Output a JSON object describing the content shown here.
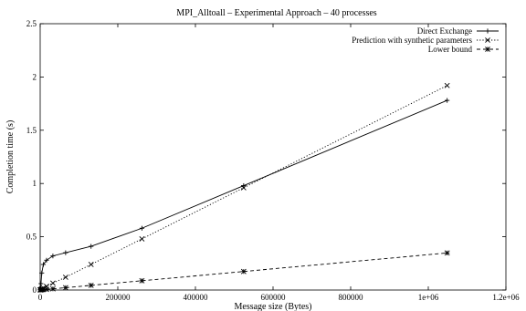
{
  "chart_data": {
    "type": "line",
    "title": "MPI_Alltoall – Experimental Approach – 40 processes",
    "xlabel": "Message size (Bytes)",
    "ylabel": "Completion time (s)",
    "xlim": [
      0,
      1200000
    ],
    "ylim": [
      0,
      2.5
    ],
    "xticks": [
      0,
      200000,
      400000,
      600000,
      800000,
      1000000,
      1200000
    ],
    "xtick_labels": [
      "0",
      "200000",
      "400000",
      "600000",
      "800000",
      "1e+06",
      "1.2e+06"
    ],
    "yticks": [
      0,
      0.5,
      1,
      1.5,
      2,
      2.5
    ],
    "ytick_labels": [
      "0",
      "0.5",
      "1",
      "1.5",
      "2",
      "2.5"
    ],
    "legend_position": "top-right",
    "series": [
      {
        "name": "Direct Exchange",
        "marker": "plus",
        "dash": "solid",
        "x": [
          0,
          1024,
          2048,
          4096,
          8192,
          16384,
          32768,
          65536,
          131072,
          262144,
          524288,
          1048576
        ],
        "y": [
          0.003,
          0.01,
          0.06,
          0.16,
          0.24,
          0.28,
          0.32,
          0.35,
          0.41,
          0.58,
          0.98,
          1.78
        ]
      },
      {
        "name": "Prediction with synthetic parameters",
        "marker": "cross",
        "dash": "dotted",
        "x": [
          0,
          1024,
          2048,
          4096,
          8192,
          16384,
          32768,
          65536,
          131072,
          262144,
          524288,
          1048576
        ],
        "y": [
          0.002,
          0.003,
          0.005,
          0.01,
          0.02,
          0.035,
          0.065,
          0.12,
          0.24,
          0.48,
          0.96,
          1.92
        ]
      },
      {
        "name": "Lower bound",
        "marker": "star",
        "dash": "dashed",
        "x": [
          0,
          1024,
          2048,
          4096,
          8192,
          16384,
          32768,
          65536,
          131072,
          262144,
          524288,
          1048576
        ],
        "y": [
          0.001,
          0.001,
          0.002,
          0.003,
          0.004,
          0.006,
          0.011,
          0.022,
          0.044,
          0.087,
          0.174,
          0.348
        ]
      }
    ]
  }
}
